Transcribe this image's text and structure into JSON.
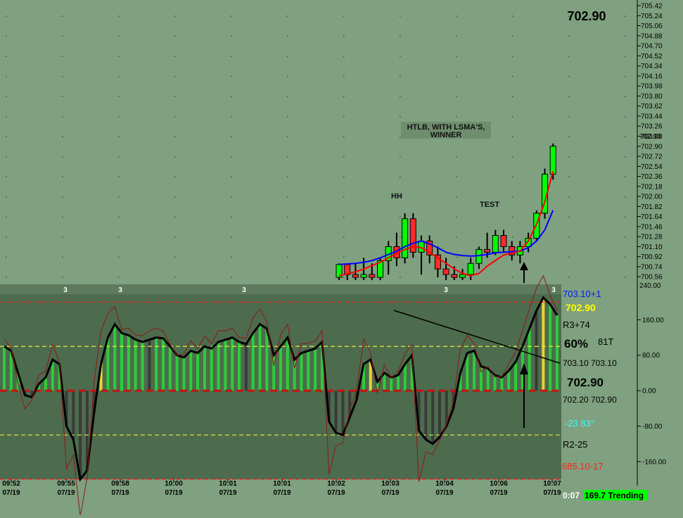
{
  "price_header": "702.90",
  "price_axis_labels": [
    "705.42",
    "705.24",
    "705.06",
    "704.88",
    "704.70",
    "704.52",
    "704.34",
    "704.16",
    "703.98",
    "703.80",
    "703.62",
    "703.44",
    "703.26",
    "703.08",
    "702.90",
    "702.72",
    "702.54",
    "702.36",
    "702.18",
    "702.00",
    "701.82",
    "701.64",
    "701.46",
    "701.28",
    "701.10",
    "700.92",
    "700.74",
    "700.56"
  ],
  "price_axis_current": "702.90",
  "price_axis_top_cut": "240.00",
  "annotations": {
    "title_line1": "HTLB, WITH LSMA'S,",
    "title_line2": "WINNER",
    "hh": "HH",
    "test": "TEST"
  },
  "osc_axis_labels": [
    "160.00",
    "80.00",
    "0.00",
    "-80.00",
    "-160.00"
  ],
  "osc_readouts": {
    "r1": "703.10+1",
    "r2": "702.90",
    "r3": "R3+74",
    "pct": "60%",
    "pct_t": "81T",
    "lvl_pair": "703.10 703.10",
    "big": "702.90",
    "lvl_pair2": "702.20 702.90",
    "angle": "-23  83°",
    "r4": "R2-25",
    "low": "685.10-17"
  },
  "threes": [
    "3",
    "3",
    "3",
    "3",
    "3"
  ],
  "time_labels": [
    {
      "t": "09:52",
      "d": "07/19"
    },
    {
      "t": "09:55",
      "d": "07/19"
    },
    {
      "t": "09:58",
      "d": "07/19"
    },
    {
      "t": "10:00",
      "d": "07/19"
    },
    {
      "t": "10:01",
      "d": "07/19"
    },
    {
      "t": "10:01",
      "d": "07/19"
    },
    {
      "t": "10:02",
      "d": "07/19"
    },
    {
      "t": "10:03",
      "d": "07/19"
    },
    {
      "t": "10:04",
      "d": "07/19"
    },
    {
      "t": "10:06",
      "d": "07/19"
    },
    {
      "t": "10:07",
      "d": "07/19"
    }
  ],
  "status": {
    "clock": "0:07",
    "trend": "169.7 Trending"
  },
  "colors": {
    "bg": "#7fa17f",
    "osc_bg": "#4d6b4d",
    "bull": "#00ff00",
    "bear": "#ff2a2a",
    "lsma_fast": "#ff0000",
    "lsma_slow": "#0000ff",
    "cci": "#000000",
    "trend_bg": "#00ff00"
  },
  "chart_data": [
    {
      "type": "candlestick",
      "title": "HTLB, WITH LSMA'S, WINNER",
      "y_axis_range": [
        700.5,
        705.42
      ],
      "y_tick_step": 0.18,
      "grid": true,
      "candles": [
        {
          "o": 700.55,
          "h": 700.8,
          "l": 700.5,
          "c": 700.78,
          "dir": "up"
        },
        {
          "o": 700.78,
          "h": 700.8,
          "l": 700.5,
          "c": 700.6,
          "dir": "down"
        },
        {
          "o": 700.6,
          "h": 700.8,
          "l": 700.5,
          "c": 700.55,
          "dir": "down"
        },
        {
          "o": 700.55,
          "h": 700.9,
          "l": 700.5,
          "c": 700.6,
          "dir": "up"
        },
        {
          "o": 700.6,
          "h": 700.8,
          "l": 700.5,
          "c": 700.55,
          "dir": "down"
        },
        {
          "o": 700.55,
          "h": 700.9,
          "l": 700.5,
          "c": 700.85,
          "dir": "up"
        },
        {
          "o": 700.85,
          "h": 701.2,
          "l": 700.6,
          "c": 701.1,
          "dir": "up"
        },
        {
          "o": 701.1,
          "h": 701.35,
          "l": 700.75,
          "c": 700.9,
          "dir": "down"
        },
        {
          "o": 700.9,
          "h": 701.7,
          "l": 700.8,
          "c": 701.6,
          "dir": "up"
        },
        {
          "o": 701.6,
          "h": 701.7,
          "l": 700.9,
          "c": 701.0,
          "dir": "down"
        },
        {
          "o": 701.0,
          "h": 701.3,
          "l": 700.6,
          "c": 701.2,
          "dir": "up"
        },
        {
          "o": 701.2,
          "h": 701.3,
          "l": 700.8,
          "c": 700.95,
          "dir": "down"
        },
        {
          "o": 700.95,
          "h": 701.1,
          "l": 700.55,
          "c": 700.7,
          "dir": "down"
        },
        {
          "o": 700.7,
          "h": 700.9,
          "l": 700.5,
          "c": 700.6,
          "dir": "down"
        },
        {
          "o": 700.6,
          "h": 700.75,
          "l": 700.5,
          "c": 700.55,
          "dir": "down"
        },
        {
          "o": 700.55,
          "h": 700.7,
          "l": 700.5,
          "c": 700.6,
          "dir": "up"
        },
        {
          "o": 700.6,
          "h": 700.9,
          "l": 700.5,
          "c": 700.8,
          "dir": "up"
        },
        {
          "o": 700.8,
          "h": 701.1,
          "l": 700.7,
          "c": 701.05,
          "dir": "up"
        },
        {
          "o": 701.05,
          "h": 701.35,
          "l": 700.9,
          "c": 701.0,
          "dir": "down"
        },
        {
          "o": 701.0,
          "h": 701.4,
          "l": 700.95,
          "c": 701.3,
          "dir": "up"
        },
        {
          "o": 701.3,
          "h": 701.4,
          "l": 701.0,
          "c": 701.1,
          "dir": "down"
        },
        {
          "o": 701.1,
          "h": 701.2,
          "l": 700.85,
          "c": 700.95,
          "dir": "down"
        },
        {
          "o": 700.95,
          "h": 701.2,
          "l": 700.8,
          "c": 701.1,
          "dir": "up"
        },
        {
          "o": 701.1,
          "h": 701.35,
          "l": 701.0,
          "c": 701.25,
          "dir": "up"
        },
        {
          "o": 701.25,
          "h": 701.75,
          "l": 701.2,
          "c": 701.7,
          "dir": "up"
        },
        {
          "o": 701.7,
          "h": 702.5,
          "l": 701.6,
          "c": 702.4,
          "dir": "up"
        },
        {
          "o": 702.4,
          "h": 702.95,
          "l": 702.3,
          "c": 702.9,
          "dir": "up"
        }
      ],
      "lsma_fast": [
        700.58,
        700.61,
        700.65,
        700.7,
        700.76,
        700.82,
        700.9,
        700.98,
        701.05,
        701.1,
        701.08,
        701.0,
        700.9,
        700.8,
        700.7,
        700.62,
        700.58,
        700.62,
        700.75,
        700.85,
        700.95,
        700.98,
        701.02,
        701.2,
        701.5,
        701.9,
        702.45
      ],
      "lsma_slow": [
        700.78,
        700.79,
        700.8,
        700.82,
        700.85,
        700.9,
        700.96,
        701.02,
        701.1,
        701.16,
        701.2,
        701.15,
        701.08,
        701.0,
        700.96,
        700.94,
        700.93,
        700.94,
        700.96,
        700.99,
        701.0,
        701.01,
        701.02,
        701.08,
        701.2,
        701.4,
        701.75
      ]
    },
    {
      "type": "bar",
      "title": "CCI",
      "y_axis_range": [
        -200,
        240
      ],
      "levels": [
        200,
        100,
        0,
        -100,
        -200
      ],
      "cci": [
        100,
        90,
        40,
        -10,
        -15,
        15,
        30,
        70,
        60,
        -80,
        -110,
        -200,
        -180,
        -50,
        60,
        120,
        150,
        130,
        125,
        115,
        110,
        115,
        120,
        118,
        100,
        80,
        75,
        90,
        85,
        100,
        95,
        110,
        115,
        120,
        110,
        105,
        130,
        150,
        140,
        80,
        100,
        120,
        70,
        85,
        90,
        95,
        110,
        -70,
        -95,
        -100,
        -60,
        -20,
        60,
        70,
        20,
        40,
        30,
        35,
        60,
        80,
        -90,
        -110,
        -120,
        -105,
        -80,
        -40,
        40,
        85,
        90,
        55,
        50,
        35,
        30,
        45,
        65,
        100,
        140,
        180,
        210,
        195,
        170
      ]
    }
  ]
}
